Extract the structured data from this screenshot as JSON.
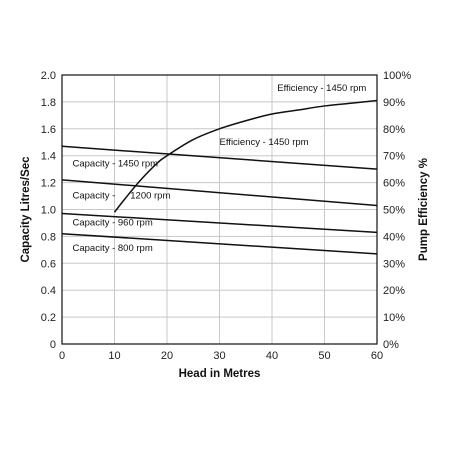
{
  "chart_data": {
    "type": "line",
    "xlabel": "Head in Metres",
    "ylabel": "Capacity Litres/Sec",
    "y2label": "Pump Efficiency %",
    "xlim": [
      0,
      60
    ],
    "ylim": [
      0,
      2.0
    ],
    "y2lim": [
      0,
      100
    ],
    "x_ticks": [
      "0",
      "10",
      "20",
      "30",
      "40",
      "50",
      "60"
    ],
    "y_ticks": [
      "0",
      "0.2",
      "0.4",
      "0.6",
      "0.8",
      "1.0",
      "1.2",
      "1.4",
      "1.6",
      "1.8",
      "2.0"
    ],
    "y2_ticks": [
      "0%",
      "10%",
      "20%",
      "30%",
      "40%",
      "50%",
      "60%",
      "70%",
      "80%",
      "90%",
      "100%"
    ],
    "grid": true,
    "series": [
      {
        "name": "Capacity - 1450 rpm",
        "axis": "left",
        "x": [
          0,
          60
        ],
        "y": [
          1.47,
          1.3
        ]
      },
      {
        "name": "Capacity - 1200 rpm",
        "axis": "left",
        "x": [
          0,
          60
        ],
        "y": [
          1.22,
          1.03
        ]
      },
      {
        "name": "Capacity - 960 rpm",
        "axis": "left",
        "x": [
          0,
          60
        ],
        "y": [
          0.97,
          0.83
        ]
      },
      {
        "name": "Capacity - 800 rpm",
        "axis": "left",
        "x": [
          0,
          60
        ],
        "y": [
          0.82,
          0.67
        ]
      },
      {
        "name": "Efficiency - 1450 rpm",
        "axis": "right",
        "x": [
          10,
          12,
          15,
          18,
          20,
          25,
          30,
          35,
          40,
          45,
          50,
          55,
          60
        ],
        "y": [
          49,
          54,
          61,
          67,
          70,
          76,
          80,
          83,
          85.5,
          87,
          88.5,
          89.5,
          90.5
        ]
      }
    ],
    "annotations": [
      {
        "text": "Efficiency - 1450 rpm",
        "x": 41,
        "y": 1.88
      },
      {
        "text": "Efficiency - 1450 rpm",
        "x": 30,
        "y": 1.48
      },
      {
        "text": "Capacity - 1450 rpm",
        "x": 2,
        "y": 1.32
      },
      {
        "text": "Capacity -",
        "x": 2,
        "y": 1.08
      },
      {
        "text": "1200 rpm",
        "x": 13,
        "y": 1.08
      },
      {
        "text": "Capacity - 960 rpm",
        "x": 2,
        "y": 0.88
      },
      {
        "text": "Capacity - 800 rpm",
        "x": 2,
        "y": 0.69
      }
    ]
  }
}
